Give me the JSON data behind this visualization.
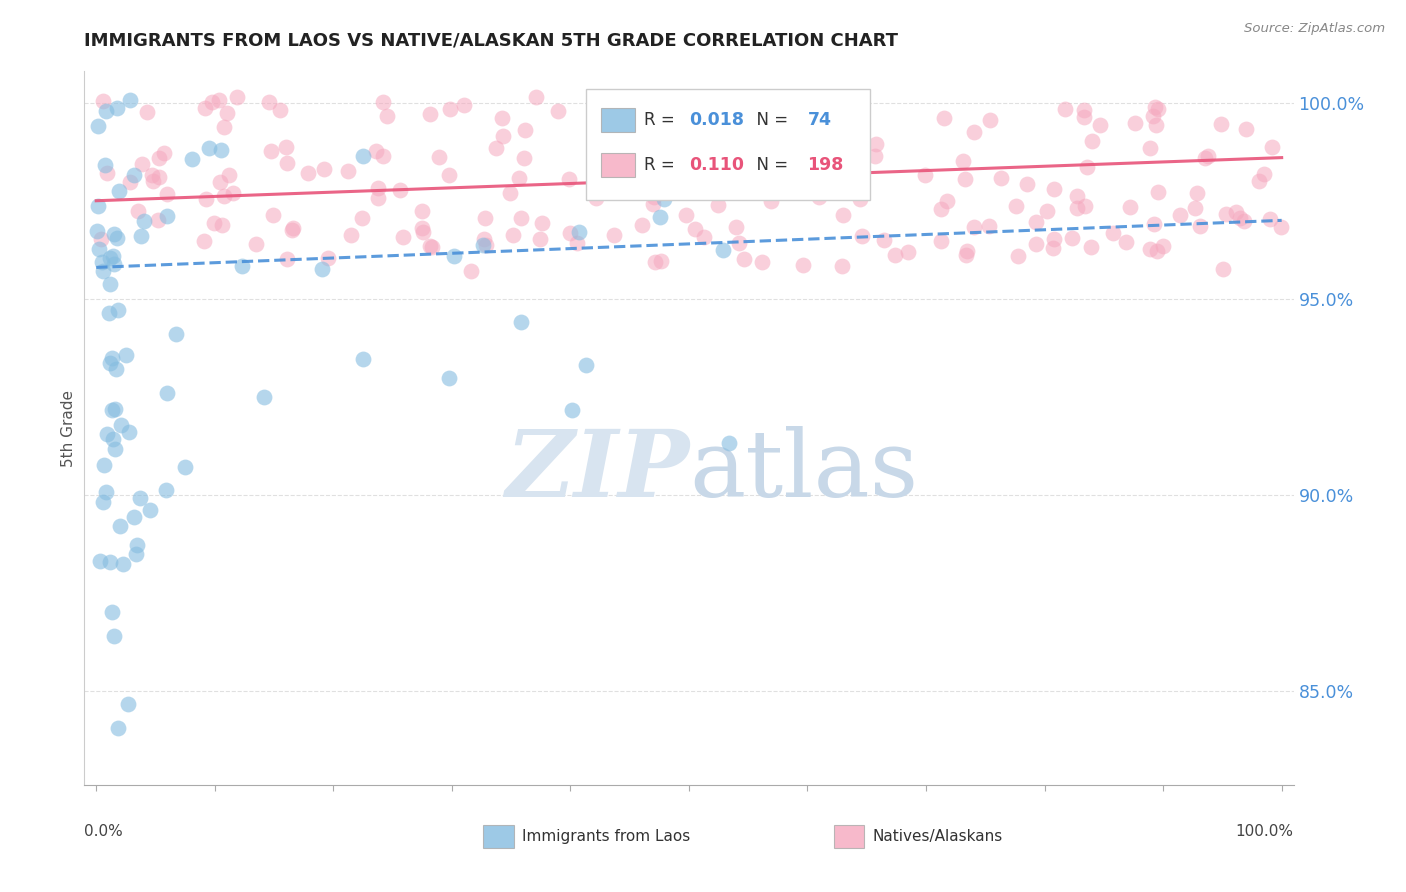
{
  "title": "IMMIGRANTS FROM LAOS VS NATIVE/ALASKAN 5TH GRADE CORRELATION CHART",
  "source": "Source: ZipAtlas.com",
  "ylabel": "5th Grade",
  "xlim": [
    0.0,
    1.0
  ],
  "ylim": [
    0.826,
    1.008
  ],
  "yticks": [
    0.85,
    0.9,
    0.95,
    1.0
  ],
  "ytick_labels": [
    "85.0%",
    "90.0%",
    "95.0%",
    "100.0%"
  ],
  "blue_color": "#85bce0",
  "pink_color": "#f5a8be",
  "blue_line_color": "#4a90d9",
  "pink_line_color": "#e8547a",
  "grid_color": "#cccccc",
  "watermark_color": "#d8e4f0",
  "legend_R_color": "#4a90d9",
  "legend_N_color_blue": "#4a90d9",
  "legend_pink_color": "#e8547a",
  "legend_blue_R": "0.018",
  "legend_blue_N": "74",
  "legend_pink_R": "0.110",
  "legend_pink_N": "198"
}
